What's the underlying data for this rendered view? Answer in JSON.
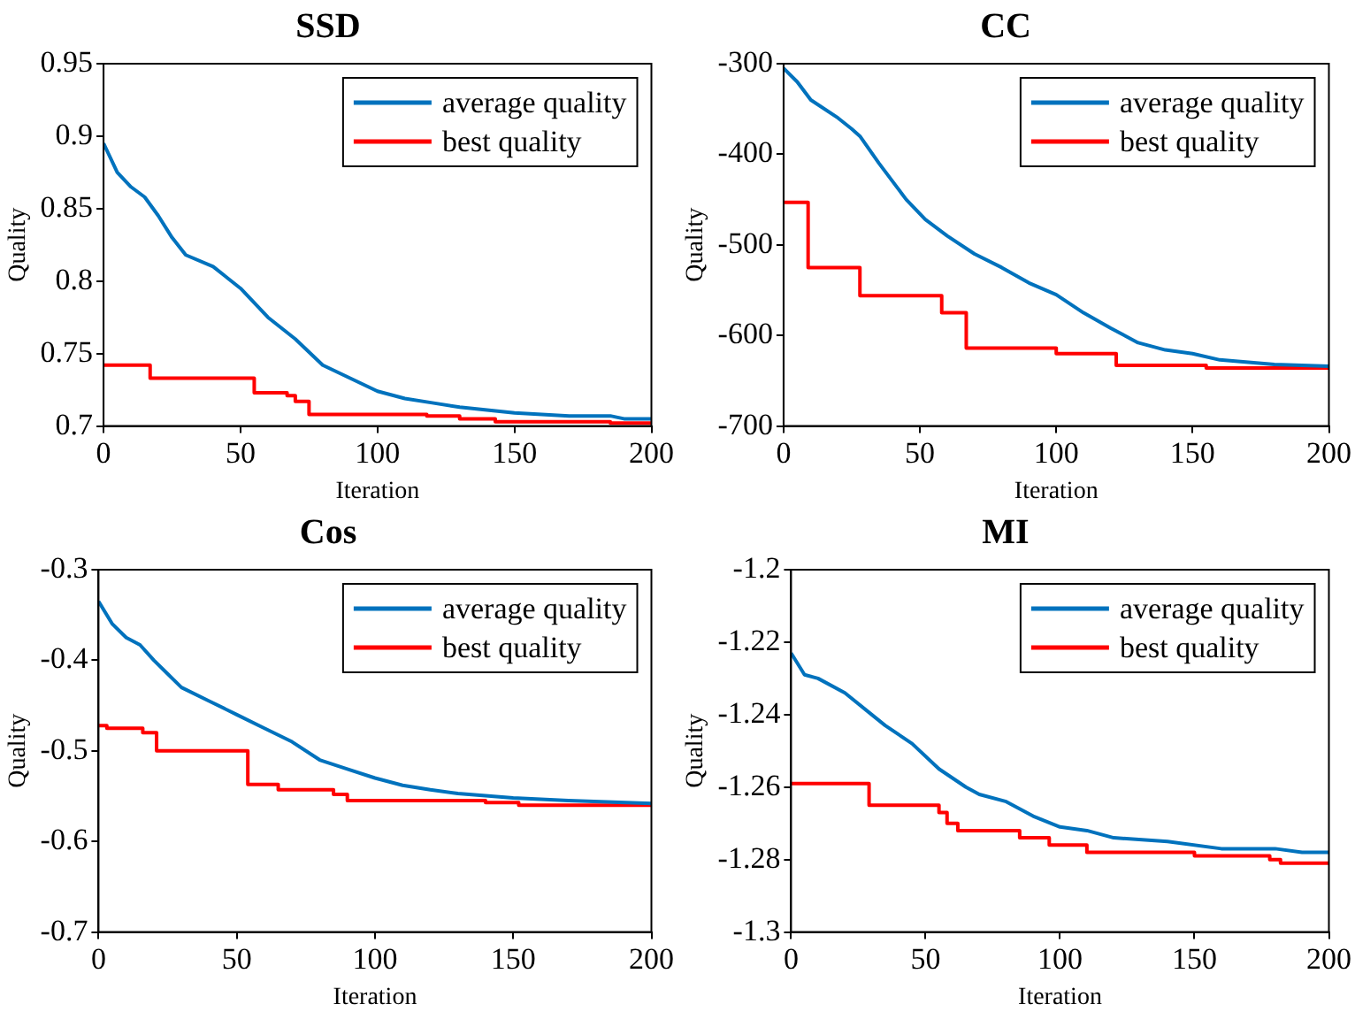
{
  "chart_data": [
    {
      "type": "line",
      "title": "SSD",
      "xlabel": "Iteration",
      "ylabel": "Quality",
      "xlim": [
        0,
        200
      ],
      "xticks": [
        0,
        50,
        100,
        150,
        200
      ],
      "ylim": [
        0.7,
        0.95
      ],
      "yticks": [
        0.7,
        0.75,
        0.8,
        0.85,
        0.9,
        0.95
      ],
      "grid": false,
      "legend": "top right",
      "series": [
        {
          "name": "average quality",
          "color": "#0072bd",
          "x": [
            0,
            5,
            10,
            15,
            20,
            25,
            30,
            40,
            50,
            60,
            70,
            80,
            90,
            100,
            110,
            120,
            130,
            150,
            170,
            185,
            190,
            200
          ],
          "values": [
            0.895,
            0.875,
            0.865,
            0.858,
            0.845,
            0.83,
            0.818,
            0.81,
            0.795,
            0.775,
            0.76,
            0.742,
            0.733,
            0.724,
            0.719,
            0.716,
            0.713,
            0.709,
            0.707,
            0.707,
            0.705,
            0.705
          ]
        },
        {
          "name": "best quality",
          "type": "step",
          "color": "#ff0000",
          "x": [
            0,
            17,
            55,
            67,
            70,
            75,
            118,
            130,
            143,
            185,
            200
          ],
          "values": [
            0.742,
            0.733,
            0.723,
            0.721,
            0.717,
            0.708,
            0.707,
            0.705,
            0.703,
            0.702,
            0.702
          ]
        }
      ]
    },
    {
      "type": "line",
      "title": "CC",
      "xlabel": "Iteration",
      "ylabel": "Quality",
      "xlim": [
        0,
        200
      ],
      "xticks": [
        0,
        50,
        100,
        150,
        200
      ],
      "ylim": [
        -700,
        -300
      ],
      "yticks": [
        -700,
        -600,
        -500,
        -400,
        -300
      ],
      "grid": false,
      "legend": "top right",
      "series": [
        {
          "name": "average quality",
          "color": "#0072bd",
          "x": [
            0,
            5,
            10,
            20,
            25,
            28,
            35,
            45,
            52,
            60,
            70,
            80,
            90,
            100,
            110,
            120,
            130,
            140,
            150,
            160,
            180,
            200
          ],
          "values": [
            -305,
            -320,
            -340,
            -360,
            -372,
            -380,
            -410,
            -450,
            -472,
            -490,
            -510,
            -525,
            -542,
            -555,
            -575,
            -592,
            -608,
            -616,
            -620,
            -627,
            -632,
            -634
          ]
        },
        {
          "name": "best quality",
          "type": "step",
          "color": "#ff0000",
          "x": [
            0,
            9,
            28,
            58,
            67,
            100,
            122,
            155,
            200
          ],
          "values": [
            -453,
            -525,
            -556,
            -575,
            -614,
            -620,
            -633,
            -636,
            -636
          ]
        }
      ]
    },
    {
      "type": "line",
      "title": "Cos",
      "xlabel": "Iteration",
      "ylabel": "Quality",
      "xlim": [
        0,
        200
      ],
      "xticks": [
        0,
        50,
        100,
        150,
        200
      ],
      "ylim": [
        -0.7,
        -0.3
      ],
      "yticks": [
        -0.7,
        -0.6,
        -0.5,
        -0.4,
        -0.3
      ],
      "grid": false,
      "legend": "top right",
      "series": [
        {
          "name": "average quality",
          "color": "#0072bd",
          "x": [
            0,
            5,
            10,
            15,
            20,
            25,
            30,
            40,
            50,
            60,
            70,
            80,
            90,
            100,
            110,
            120,
            130,
            150,
            170,
            200
          ],
          "values": [
            -0.335,
            -0.36,
            -0.375,
            -0.383,
            -0.4,
            -0.415,
            -0.43,
            -0.445,
            -0.46,
            -0.475,
            -0.49,
            -0.51,
            -0.52,
            -0.53,
            -0.538,
            -0.543,
            -0.547,
            -0.552,
            -0.555,
            -0.558
          ]
        },
        {
          "name": "best quality",
          "type": "step",
          "color": "#ff0000",
          "x": [
            0,
            3,
            16,
            21,
            54,
            65,
            85,
            90,
            140,
            152,
            200
          ],
          "values": [
            -0.472,
            -0.475,
            -0.48,
            -0.5,
            -0.537,
            -0.543,
            -0.548,
            -0.555,
            -0.557,
            -0.56,
            -0.56
          ]
        }
      ]
    },
    {
      "type": "line",
      "title": "MI",
      "xlabel": "Iteration",
      "ylabel": "Quality",
      "xlim": [
        0,
        200
      ],
      "xticks": [
        0,
        50,
        100,
        150,
        200
      ],
      "ylim": [
        -1.3,
        -1.2
      ],
      "yticks": [
        -1.3,
        -1.28,
        -1.26,
        -1.24,
        -1.22,
        -1.2
      ],
      "grid": false,
      "legend": "top right",
      "series": [
        {
          "name": "average quality",
          "color": "#0072bd",
          "x": [
            0,
            5,
            10,
            20,
            30,
            35,
            45,
            55,
            65,
            70,
            80,
            90,
            100,
            110,
            120,
            140,
            160,
            180,
            190,
            200
          ],
          "values": [
            -1.223,
            -1.229,
            -1.23,
            -1.234,
            -1.24,
            -1.243,
            -1.248,
            -1.255,
            -1.26,
            -1.262,
            -1.264,
            -1.268,
            -1.271,
            -1.272,
            -1.274,
            -1.275,
            -1.277,
            -1.277,
            -1.278,
            -1.278
          ]
        },
        {
          "name": "best quality",
          "type": "step",
          "color": "#ff0000",
          "x": [
            0,
            29,
            55,
            58,
            62,
            85,
            96,
            110,
            150,
            178,
            182,
            200
          ],
          "values": [
            -1.259,
            -1.265,
            -1.267,
            -1.27,
            -1.272,
            -1.274,
            -1.276,
            -1.278,
            -1.279,
            -1.28,
            -1.281,
            -1.281
          ]
        }
      ]
    }
  ]
}
